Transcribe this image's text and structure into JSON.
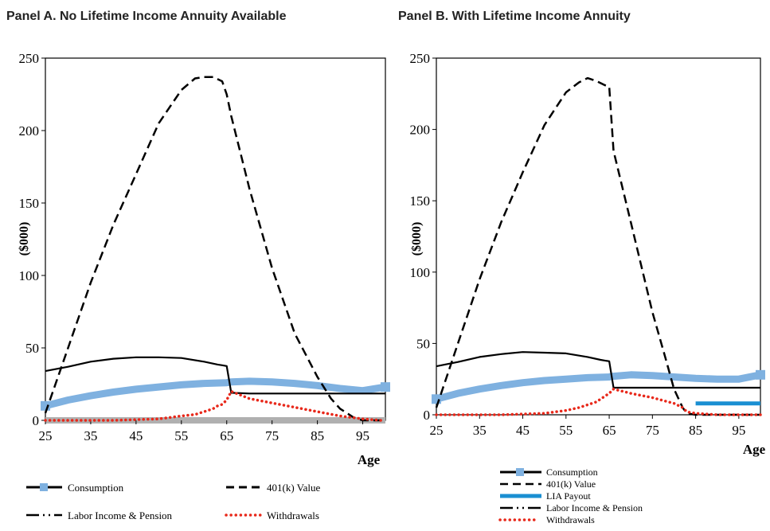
{
  "panels": [
    {
      "title": "Panel A. No Lifetime Income Annuity Available",
      "ylabel": "($000)",
      "xlabel": "Age",
      "legend_labels": [
        "Consumption",
        "401(k) Value",
        "Labor Income & Pension",
        "Withdrawals"
      ]
    },
    {
      "title": "Panel B. With Lifetime Income Annuity",
      "ylabel": "($000)",
      "xlabel": "Age",
      "legend_labels": [
        "Consumption",
        "401(k) Value",
        "LIA Payout",
        "Labor Income & Pension",
        "Withdrawals"
      ]
    }
  ],
  "colors": {
    "consumption": "#7fb1e0",
    "value_401k": "#000000",
    "labor_income": "#000000",
    "withdrawals": "#e8281a",
    "lia_payout": "#1a8fd2",
    "zero_band": "#b0b0b0"
  },
  "chart_data": [
    {
      "type": "line",
      "title": "Panel A. No Lifetime Income Annuity Available",
      "xlabel": "Age",
      "ylabel": "($000)",
      "xlim": [
        25,
        100
      ],
      "ylim": [
        0,
        250
      ],
      "x_ticks": [
        25,
        35,
        45,
        55,
        65,
        75,
        85,
        95
      ],
      "y_ticks": [
        0,
        50,
        100,
        150,
        200,
        250
      ],
      "grid": false,
      "legend_position": "bottom",
      "series": [
        {
          "name": "Consumption",
          "style": "thick-square-markers",
          "x": [
            25,
            30,
            35,
            40,
            45,
            50,
            55,
            60,
            65,
            66,
            70,
            75,
            80,
            85,
            90,
            95,
            100
          ],
          "y": [
            10,
            14,
            17,
            19.5,
            21.5,
            23,
            24.5,
            25.5,
            26,
            26.5,
            27,
            26.5,
            25.5,
            24,
            22,
            20.5,
            23
          ]
        },
        {
          "name": "401(k) Value",
          "style": "dashed",
          "x": [
            25,
            30,
            35,
            40,
            45,
            50,
            55,
            58,
            60,
            62,
            64,
            65,
            66,
            70,
            75,
            80,
            85,
            88,
            90,
            93,
            95,
            96,
            99
          ],
          "y": [
            5,
            50,
            95,
            135,
            170,
            205,
            228,
            236,
            237,
            237,
            234,
            225,
            210,
            160,
            105,
            60,
            30,
            15,
            8,
            2,
            0,
            0,
            0
          ]
        },
        {
          "name": "Labor Income & Pension",
          "style": "dash-dot",
          "x": [
            25,
            30,
            35,
            40,
            45,
            50,
            55,
            60,
            63,
            64,
            65,
            66,
            70,
            80,
            90,
            100
          ],
          "y": [
            34,
            37,
            40.5,
            42.5,
            43.5,
            43.5,
            43,
            40.5,
            38.5,
            38,
            37.5,
            19,
            18.5,
            18.5,
            18.5,
            18.5
          ]
        },
        {
          "name": "Withdrawals",
          "style": "dotted",
          "x": [
            25,
            40,
            50,
            55,
            58,
            60,
            62,
            63,
            64,
            65,
            66,
            70,
            75,
            80,
            85,
            90,
            95,
            99
          ],
          "y": [
            0,
            0,
            1,
            3,
            4,
            6,
            8,
            10,
            11,
            14,
            20,
            15,
            12,
            9,
            6,
            3,
            1,
            0
          ]
        }
      ]
    },
    {
      "type": "line",
      "title": "Panel B. With Lifetime Income Annuity",
      "xlabel": "Age",
      "ylabel": "($000)",
      "xlim": [
        25,
        100
      ],
      "ylim": [
        0,
        250
      ],
      "x_ticks": [
        25,
        35,
        45,
        55,
        65,
        75,
        85,
        95
      ],
      "y_ticks": [
        0,
        50,
        100,
        150,
        200,
        250
      ],
      "grid": false,
      "legend_position": "bottom",
      "series": [
        {
          "name": "Consumption",
          "style": "thick-square-markers",
          "x": [
            25,
            30,
            35,
            40,
            45,
            50,
            55,
            60,
            65,
            66,
            70,
            75,
            80,
            85,
            90,
            95,
            100
          ],
          "y": [
            11,
            15,
            18,
            20.5,
            22.5,
            24,
            25,
            26,
            26.5,
            27,
            28,
            27.5,
            26.5,
            25.5,
            25,
            25,
            28
          ]
        },
        {
          "name": "401(k) Value",
          "style": "dashed",
          "x": [
            25,
            30,
            35,
            40,
            45,
            50,
            55,
            58,
            60,
            62,
            64,
            65,
            66,
            70,
            75,
            78,
            80,
            82,
            83,
            85,
            90,
            100
          ],
          "y": [
            5,
            50,
            95,
            135,
            170,
            203,
            226,
            233,
            236,
            234,
            231,
            230,
            185,
            135,
            72,
            40,
            18,
            5,
            1,
            0,
            0,
            0
          ]
        },
        {
          "name": "Labor Income & Pension",
          "style": "dash-dot",
          "x": [
            25,
            30,
            35,
            40,
            45,
            50,
            55,
            60,
            63,
            64,
            65,
            66,
            70,
            80,
            90,
            100
          ],
          "y": [
            34,
            37,
            40.5,
            42.5,
            44,
            43.5,
            43,
            40.5,
            38.5,
            38,
            37.5,
            19,
            19,
            19,
            19,
            19
          ]
        },
        {
          "name": "Withdrawals",
          "style": "dotted",
          "x": [
            25,
            40,
            50,
            55,
            58,
            60,
            62,
            63,
            64,
            65,
            66,
            70,
            75,
            80,
            82,
            83,
            85,
            90,
            95,
            100
          ],
          "y": [
            0,
            0,
            1,
            3,
            5,
            7,
            9,
            11,
            13,
            15,
            18,
            15,
            12,
            8,
            5,
            2,
            1,
            0,
            0,
            0
          ]
        },
        {
          "name": "LIA Payout",
          "style": "thick-solid",
          "x": [
            85,
            100
          ],
          "y": [
            8,
            8
          ]
        }
      ]
    }
  ]
}
